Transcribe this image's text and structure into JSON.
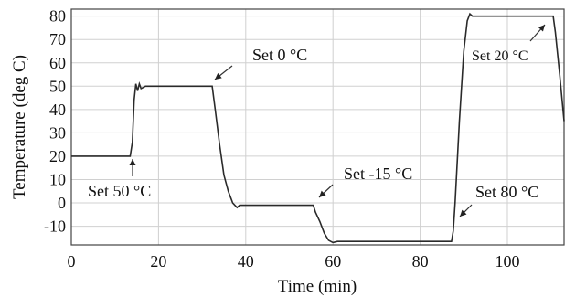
{
  "chart_data": {
    "type": "line",
    "xlabel": "Time (min)",
    "ylabel": "Temperature (deg C)",
    "xlim": [
      0,
      113
    ],
    "ylim": [
      -18,
      83
    ],
    "xticks": [
      0,
      20,
      40,
      60,
      80,
      100
    ],
    "yticks": [
      -10,
      0,
      10,
      20,
      30,
      40,
      50,
      60,
      70,
      80
    ],
    "x_tick_labels": [
      "0",
      "20",
      "40",
      "60",
      "80",
      "100"
    ],
    "y_tick_labels": [
      "-10",
      "0",
      "10",
      "20",
      "30",
      "40",
      "50",
      "60",
      "70",
      "80"
    ],
    "grid": true,
    "series": [
      {
        "x": [
          0,
          13.5,
          14.0,
          14.4,
          14.8,
          15.2,
          15.6,
          16.0,
          17,
          20,
          25,
          30,
          32.3,
          33,
          34,
          35,
          36,
          37,
          38,
          38.6,
          39.5,
          45,
          50,
          55.5,
          56,
          57,
          58,
          59,
          60,
          61,
          70,
          80,
          87.2,
          87.6,
          88,
          89,
          90,
          90.8,
          91.4,
          92,
          95,
          100,
          105,
          110.5,
          111,
          112,
          113
        ],
        "y": [
          20,
          20,
          26,
          44,
          51,
          48,
          51,
          49,
          50,
          50,
          50,
          50,
          50,
          40,
          25,
          12,
          5,
          0,
          -2,
          -1,
          -1,
          -1,
          -1,
          -1,
          -4,
          -8,
          -13,
          -16,
          -17,
          -16.5,
          -16.5,
          -16.5,
          -16.5,
          -12,
          0,
          35,
          65,
          78,
          81,
          80,
          80,
          80,
          80,
          80,
          73,
          55,
          35
        ]
      }
    ],
    "annotations": [
      {
        "text": "Set 50 °C",
        "x": 14,
        "y": 20
      },
      {
        "text": "Set 0 °C",
        "x": 32.5,
        "y": 50
      },
      {
        "text": "Set -15 °C",
        "x": 56,
        "y": -1
      },
      {
        "text": "Set 80 °C",
        "x": 87.5,
        "y": -16
      },
      {
        "text": "Set 20 °C",
        "x": 110,
        "y": 80
      }
    ]
  }
}
